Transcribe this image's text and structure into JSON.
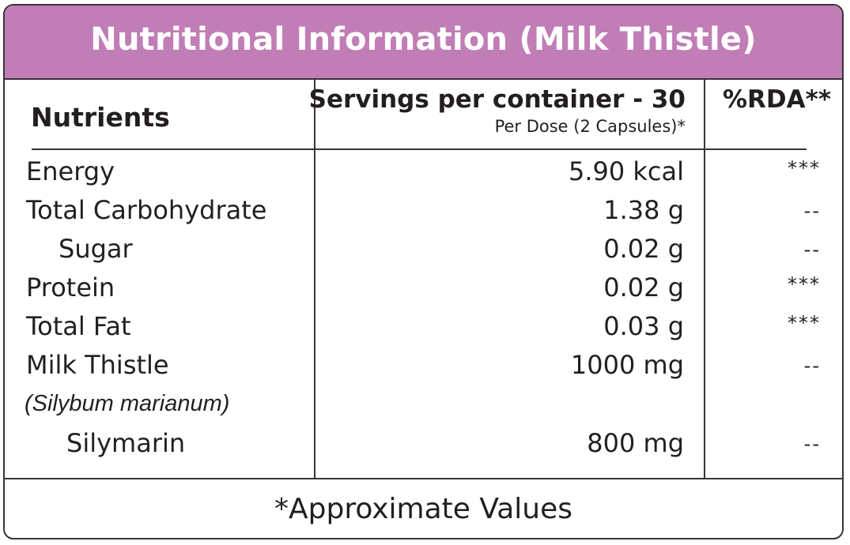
{
  "title": "Nutritional Information (Milk Thistle)",
  "columns": {
    "nutrients": "Nutrients",
    "servings": "Servings per container - 30",
    "per_dose": "Per Dose (2 Capsules)*",
    "rda": "%RDA**"
  },
  "rows": [
    {
      "name": "Energy",
      "amount": "5.90 kcal",
      "rda": "***"
    },
    {
      "name": "Total Carbohydrate",
      "amount": "1.38 g",
      "rda": "--"
    },
    {
      "name": "Sugar",
      "amount": "0.02 g",
      "rda": "--"
    },
    {
      "name": "Protein",
      "amount": "0.02 g",
      "rda": "***"
    },
    {
      "name": "Total Fat",
      "amount": "0.03 g",
      "rda": "***"
    },
    {
      "name": "Milk Thistle",
      "amount": "1000 mg",
      "rda": "--"
    },
    {
      "name": "(Silybum marianum)"
    },
    {
      "name": "Silymarin",
      "amount": "800 mg",
      "rda": "--"
    }
  ],
  "footnote": "*Approximate Values",
  "colors": {
    "header_bg": "#c17db6",
    "header_text": "#ffffff",
    "border": "#3a3335",
    "text": "#231f20"
  }
}
